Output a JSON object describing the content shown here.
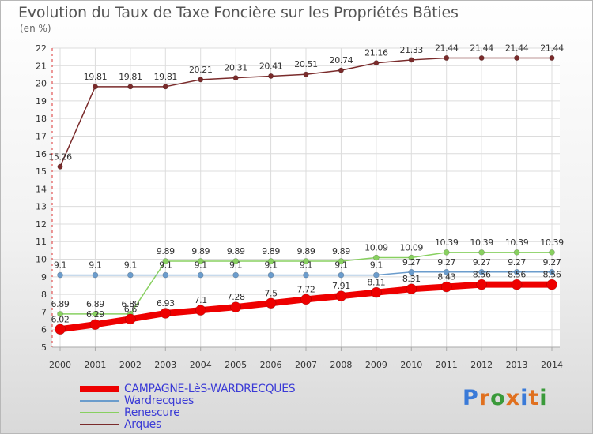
{
  "title": "Evolution du Taux de Taxe Foncière sur les Propriétés Bâties",
  "unit": "(en %)",
  "logo": {
    "letters": [
      "P",
      "r",
      "o",
      "x",
      "i",
      "t",
      "i"
    ],
    "colors": [
      "#3a7ad8",
      "#e0701f",
      "#3a9a3a",
      "#e0701f",
      "#3a7ad8",
      "#e0701f",
      "#3a9a3a"
    ]
  },
  "chart_data": {
    "type": "line",
    "title": "Evolution du Taux de Taxe Foncière sur les Propriétés Bâties",
    "ylabel": "(en %)",
    "xlabel": "",
    "ylim": [
      5,
      22
    ],
    "yticks": [
      5,
      6,
      7,
      8,
      9,
      10,
      11,
      12,
      13,
      14,
      15,
      16,
      17,
      18,
      19,
      20,
      21,
      22
    ],
    "x": [
      2000,
      2001,
      2002,
      2003,
      2004,
      2005,
      2006,
      2007,
      2008,
      2009,
      2010,
      2011,
      2012,
      2013,
      2014
    ],
    "series": [
      {
        "name": "Arques",
        "color": "#7a2b2b",
        "width": 1.5,
        "marker": 3.2,
        "values": [
          15.26,
          19.81,
          19.81,
          19.81,
          20.21,
          20.31,
          20.41,
          20.51,
          20.74,
          21.16,
          21.33,
          21.44,
          21.44,
          21.44,
          21.44
        ],
        "labels": [
          "15.26",
          "19.81",
          "19.81",
          "19.81",
          "20.21",
          "20.31",
          "20.41",
          "20.51",
          "20.74",
          "21.16",
          "21.33",
          "21.44",
          "21.44",
          "21.44",
          "21.44"
        ]
      },
      {
        "name": "Renescure",
        "color": "#88d060",
        "width": 1.5,
        "marker": 3.5,
        "values": [
          6.89,
          6.89,
          6.89,
          9.89,
          9.89,
          9.89,
          9.89,
          9.89,
          9.89,
          10.09,
          10.09,
          10.39,
          10.39,
          10.39,
          10.39
        ],
        "labels": [
          "6.89",
          "6.89",
          "6.89",
          "9.89",
          "9.89",
          "9.89",
          "9.89",
          "9.89",
          "9.89",
          "10.09",
          "10.09",
          "10.39",
          "10.39",
          "10.39",
          "10.39"
        ]
      },
      {
        "name": "Wardrecques",
        "color": "#6b9ccc",
        "width": 1.5,
        "marker": 3.5,
        "values": [
          9.1,
          9.1,
          9.1,
          9.1,
          9.1,
          9.1,
          9.1,
          9.1,
          9.1,
          9.1,
          9.27,
          9.27,
          9.27,
          9.27,
          9.27
        ],
        "labels": [
          "9.1",
          "9.1",
          "9.1",
          "9.1",
          "9.1",
          "9.1",
          "9.1",
          "9.1",
          "9.1",
          "9.1",
          "9.27",
          "9.27",
          "9.27",
          "9.27",
          "9.27"
        ]
      },
      {
        "name": "CAMPAGNE-LèS-WARDRECQUES",
        "color": "#ee0000",
        "width": 8,
        "marker": 6.5,
        "values": [
          6.02,
          6.29,
          6.6,
          6.93,
          7.1,
          7.28,
          7.5,
          7.72,
          7.91,
          8.11,
          8.31,
          8.43,
          8.56,
          8.56,
          8.56
        ],
        "labels": [
          "6.02",
          "6.29",
          "6.6",
          "6.93",
          "7.1",
          "7.28",
          "7.5",
          "7.72",
          "7.91",
          "8.11",
          "8.31",
          "8.43",
          "8.56",
          "8.56",
          "8.56"
        ]
      }
    ],
    "legend": [
      {
        "name": "CAMPAGNE-LèS-WARDRECQUES",
        "color": "#ee0000",
        "textcolor": "#3b3bd6"
      },
      {
        "name": "Wardrecques",
        "color": "#6b9ccc",
        "textcolor": "#3b3bd6"
      },
      {
        "name": "Renescure",
        "color": "#88d060",
        "textcolor": "#3b3bd6"
      },
      {
        "name": "Arques",
        "color": "#7a2b2b",
        "textcolor": "#3b3bd6"
      }
    ]
  }
}
